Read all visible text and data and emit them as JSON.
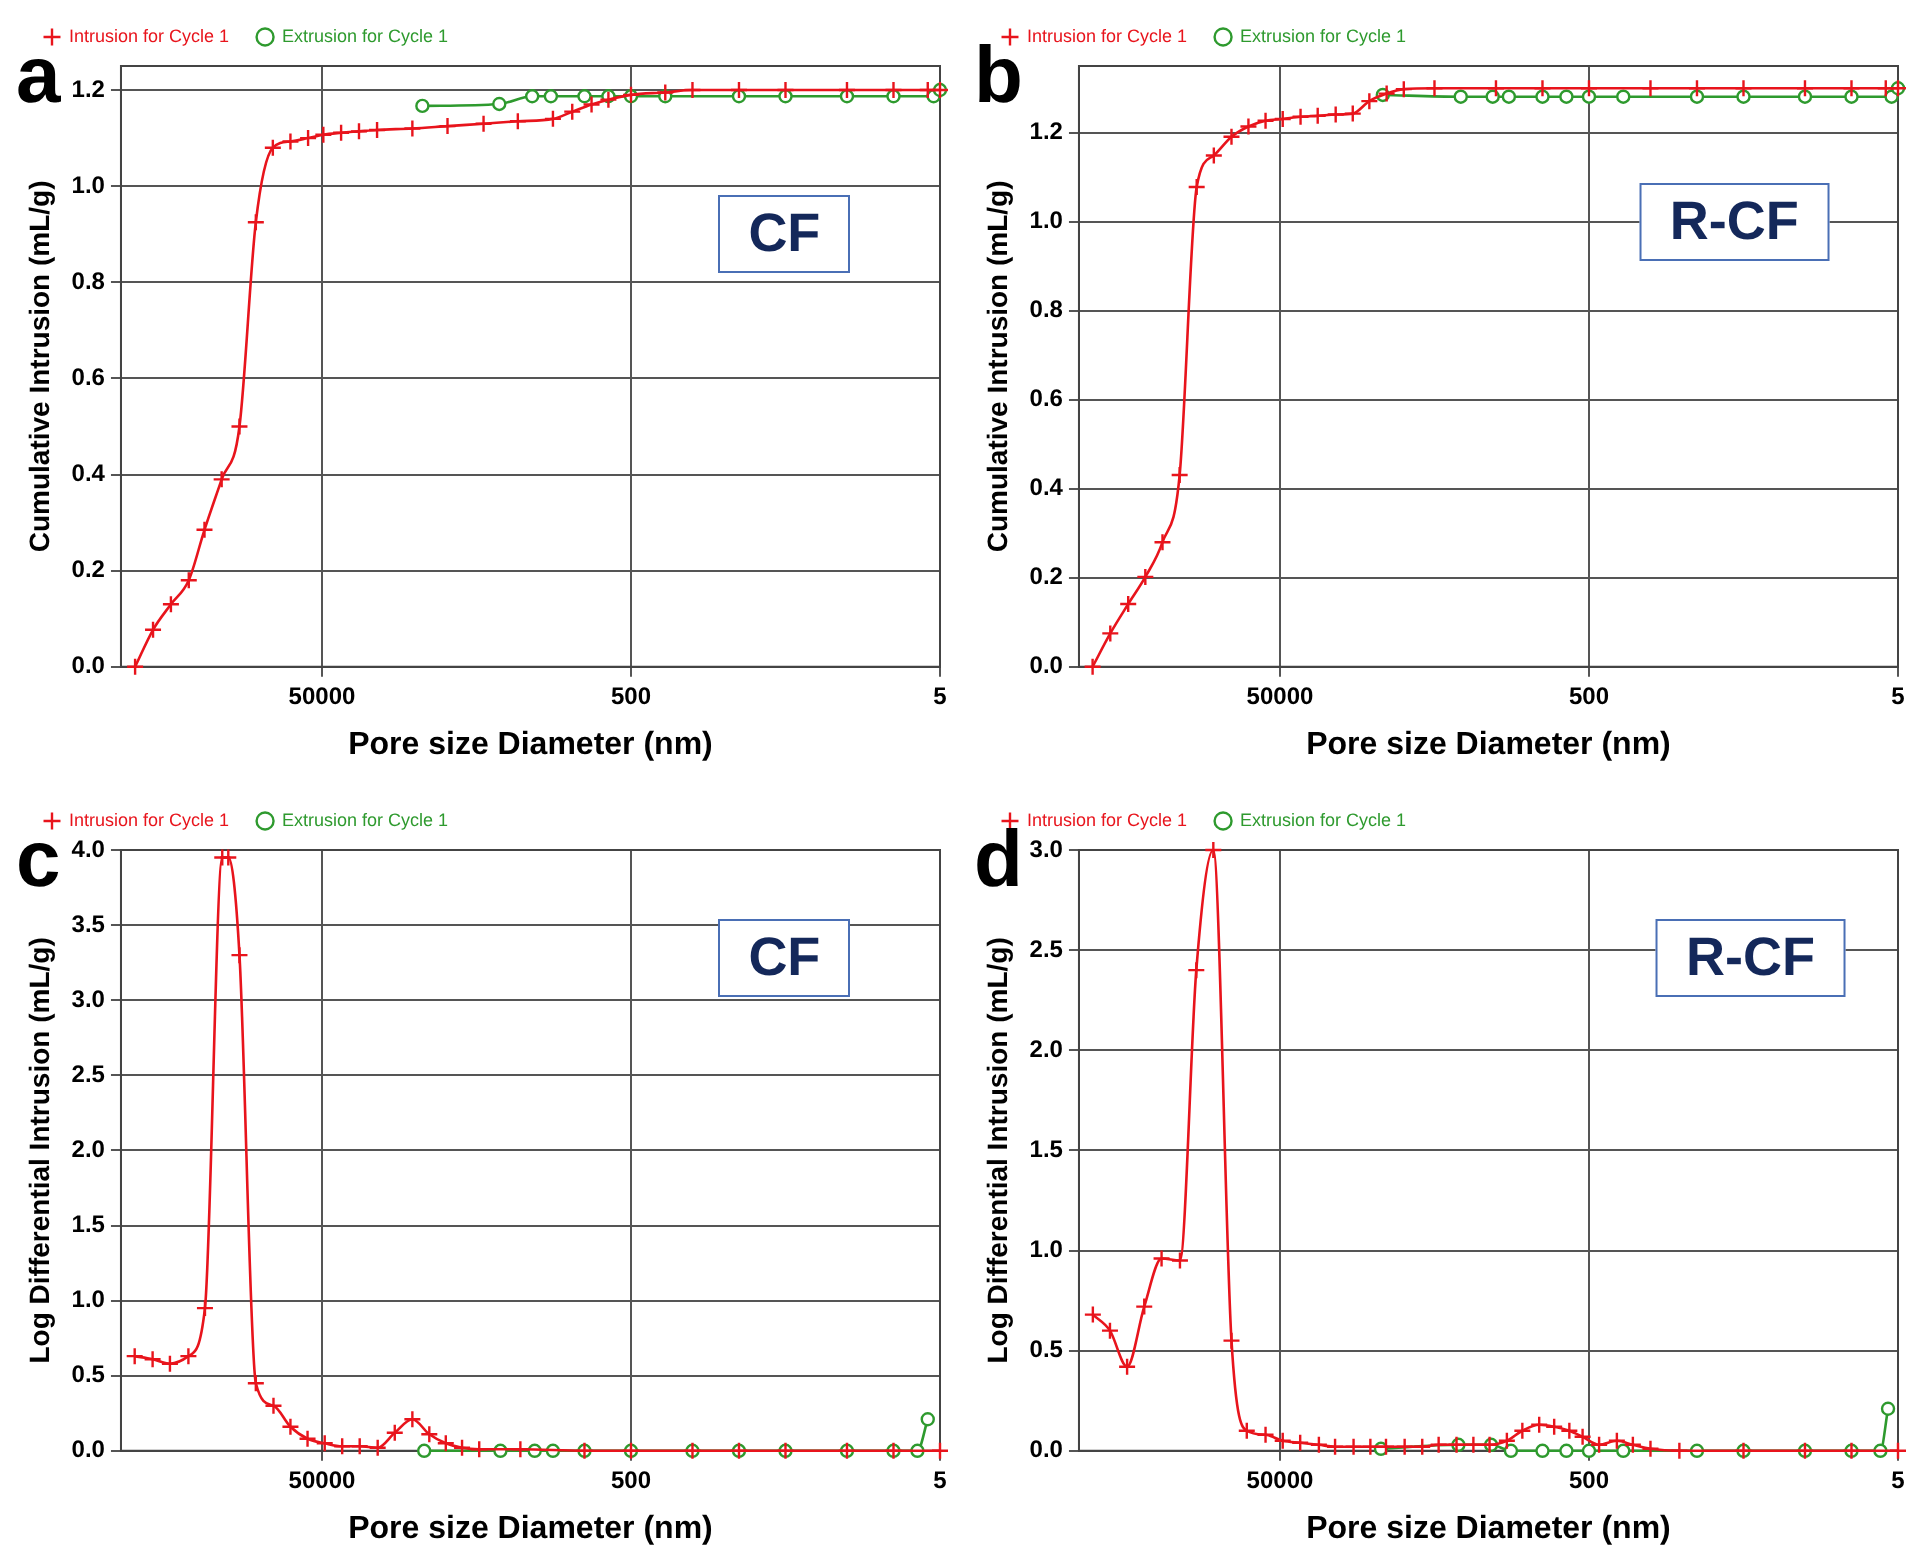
{
  "chart_data": [
    {
      "type": "line",
      "xlabel": "Pore size Diameter (nm)",
      "ylabel": "Cumulative Intrusion (mL/g)",
      "log": "x",
      "xlim": [
        1000000,
        5
      ],
      "xticks": [
        50000,
        500,
        5
      ],
      "ylim": [
        0,
        1.25
      ],
      "yticks": [
        {
          "value": 0,
          "label": "0.0"
        },
        {
          "value": 0.2,
          "label": "0.2"
        },
        {
          "value": 0.4,
          "label": "0.4"
        },
        {
          "value": 0.6,
          "label": "0.6"
        },
        {
          "value": 0.8,
          "label": "0.8"
        },
        {
          "value": 1,
          "label": "1.0"
        },
        {
          "value": 1.2,
          "label": "1.2"
        }
      ],
      "grid": true,
      "legend": "top left",
      "annotations": [
        "a",
        "CF"
      ],
      "series": [
        {
          "name": "Intrusion for Cycle 1",
          "color": "#e8141c",
          "marker": "cross",
          "x": [
            810000,
            620000,
            475000,
            364000,
            288000,
            223000,
            171000,
            134000,
            104000,
            80000,
            61500,
            49000,
            37600,
            28800,
            22000,
            13000,
            7700,
            4500,
            2700,
            1600,
            1200,
            900,
            700,
            500,
            300,
            200,
            100,
            50,
            20,
            10,
            6,
            5
          ],
          "values": [
            0,
            0.077,
            0.13,
            0.18,
            0.285,
            0.39,
            0.5,
            0.925,
            1.08,
            1.093,
            1.1,
            1.107,
            1.111,
            1.114,
            1.117,
            1.12,
            1.125,
            1.13,
            1.135,
            1.14,
            1.155,
            1.17,
            1.18,
            1.19,
            1.195,
            1.2,
            1.2,
            1.2,
            1.2,
            1.2,
            1.2,
            1.2
          ]
        },
        {
          "name": "Extrusion for Cycle 1",
          "color": "#2e9a2e",
          "marker": "circle",
          "x": [
            11200,
            3560,
            2180,
            1650,
            1000,
            700,
            500,
            300,
            100,
            50,
            20,
            10,
            5.5,
            5
          ],
          "values": [
            1.167,
            1.171,
            1.187,
            1.187,
            1.187,
            1.187,
            1.187,
            1.187,
            1.187,
            1.187,
            1.187,
            1.187,
            1.187,
            1.2
          ]
        }
      ]
    },
    {
      "type": "line",
      "xlabel": "Pore size Diameter (nm)",
      "ylabel": "Cumulative Intrusion (mL/g)",
      "log": "x",
      "xlim": [
        1000000,
        5
      ],
      "xticks": [
        50000,
        500,
        5
      ],
      "ylim": [
        0,
        1.35
      ],
      "yticks": [
        {
          "value": 0,
          "label": "0.0"
        },
        {
          "value": 0.2,
          "label": "0.2"
        },
        {
          "value": 0.4,
          "label": "0.4"
        },
        {
          "value": 0.6,
          "label": "0.6"
        },
        {
          "value": 0.8,
          "label": "0.8"
        },
        {
          "value": 1,
          "label": "1.0"
        },
        {
          "value": 1.2,
          "label": "1.2"
        }
      ],
      "grid": true,
      "legend": "top left",
      "annotations": [
        "b",
        "R-CF"
      ],
      "series": [
        {
          "name": "Intrusion for Cycle 1",
          "color": "#e8141c",
          "marker": "cross",
          "x": [
            816000,
            627000,
            480000,
            372000,
            288000,
            223000,
            173000,
            134000,
            103000,
            80000,
            62000,
            48000,
            36800,
            28500,
            21800,
            16900,
            13200,
            10200,
            7900,
            5000,
            2000,
            1000,
            500,
            200,
            100,
            50,
            20,
            10,
            6,
            5
          ],
          "values": [
            0,
            0.075,
            0.141,
            0.202,
            0.28,
            0.431,
            1.078,
            1.149,
            1.191,
            1.214,
            1.227,
            1.231,
            1.236,
            1.238,
            1.241,
            1.243,
            1.271,
            1.288,
            1.298,
            1.3,
            1.3,
            1.3,
            1.3,
            1.3,
            1.3,
            1.3,
            1.3,
            1.3,
            1.3,
            1.3
          ]
        },
        {
          "name": "Extrusion for Cycle 1",
          "color": "#2e9a2e",
          "marker": "circle",
          "x": [
            10800,
            3380,
            2100,
            1650,
            1000,
            700,
            500,
            300,
            100,
            50,
            20,
            10,
            5.5,
            5
          ],
          "values": [
            1.285,
            1.281,
            1.281,
            1.281,
            1.281,
            1.281,
            1.281,
            1.281,
            1.281,
            1.281,
            1.281,
            1.281,
            1.281,
            1.3
          ]
        }
      ]
    },
    {
      "type": "line",
      "xlabel": "Pore size Diameter (nm)",
      "ylabel": "Log Differential Intrusion (mL/g)",
      "log": "x",
      "xlim": [
        1000000,
        5
      ],
      "xticks": [
        50000,
        500,
        5
      ],
      "ylim": [
        0,
        4
      ],
      "yticks": [
        {
          "value": 0,
          "label": "0.0"
        },
        {
          "value": 0.5,
          "label": "0.5"
        },
        {
          "value": 1,
          "label": "1.0"
        },
        {
          "value": 1.5,
          "label": "1.5"
        },
        {
          "value": 2,
          "label": "2.0"
        },
        {
          "value": 2.5,
          "label": "2.5"
        },
        {
          "value": 3,
          "label": "3.0"
        },
        {
          "value": 3.5,
          "label": "3.5"
        },
        {
          "value": 4,
          "label": "4.0"
        }
      ],
      "grid": true,
      "legend": "top left",
      "annotations": [
        "c",
        "CF"
      ],
      "series": [
        {
          "name": "Intrusion for Cycle 1",
          "color": "#e8141c",
          "marker": "cross",
          "x": [
            815000,
            624000,
            482000,
            366000,
            286000,
            221000,
            202000,
            171000,
            134000,
            103000,
            80000,
            62000,
            48000,
            37000,
            28500,
            21800,
            16900,
            13000,
            10100,
            7900,
            6200,
            4800,
            2600,
            1000,
            500,
            200,
            100,
            50,
            20,
            10,
            5
          ],
          "values": [
            0.63,
            0.61,
            0.58,
            0.63,
            0.95,
            3.95,
            3.95,
            3.3,
            0.45,
            0.3,
            0.16,
            0.08,
            0.05,
            0.03,
            0.03,
            0.02,
            0.12,
            0.21,
            0.11,
            0.05,
            0.02,
            0.01,
            0.01,
            0,
            0,
            0,
            0,
            0,
            0,
            0,
            0
          ]
        },
        {
          "name": "Extrusion for Cycle 1",
          "color": "#2e9a2e",
          "marker": "circle",
          "x": [
            10900,
            3500,
            2100,
            1600,
            1000,
            500,
            200,
            100,
            50,
            20,
            10,
            7,
            6
          ],
          "values": [
            0,
            0,
            0,
            0,
            0,
            0,
            0,
            0,
            0,
            0,
            0,
            0,
            0.21
          ]
        }
      ]
    },
    {
      "type": "line",
      "xlabel": "Pore size Diameter (nm)",
      "ylabel": "Log Differential Intrusion (mL/g)",
      "log": "x",
      "xlim": [
        1000000,
        5
      ],
      "xticks": [
        50000,
        500,
        5
      ],
      "ylim": [
        0,
        3
      ],
      "yticks": [
        {
          "value": 0,
          "label": "0.0"
        },
        {
          "value": 0.5,
          "label": "0.5"
        },
        {
          "value": 1,
          "label": "1.0"
        },
        {
          "value": 1.5,
          "label": "1.5"
        },
        {
          "value": 2,
          "label": "2.0"
        },
        {
          "value": 2.5,
          "label": "2.5"
        },
        {
          "value": 3,
          "label": "3.0"
        }
      ],
      "grid": true,
      "legend": "top left",
      "annotations": [
        "d",
        "R-CF"
      ],
      "series": [
        {
          "name": "Intrusion for Cycle 1",
          "color": "#e8141c",
          "marker": "cross",
          "x": [
            813000,
            630000,
            488000,
            378000,
            292000,
            222000,
            174000,
            135000,
            103000,
            82000,
            62000,
            48000,
            37000,
            28000,
            22000,
            16700,
            13000,
            10300,
            7800,
            6000,
            4700,
            3600,
            2800,
            2200,
            1700,
            1350,
            1050,
            840,
            670,
            550,
            430,
            330,
            260,
            200,
            130,
            50,
            20,
            10,
            5
          ],
          "values": [
            0.68,
            0.6,
            0.42,
            0.72,
            0.96,
            0.95,
            2.4,
            3,
            0.55,
            0.1,
            0.08,
            0.05,
            0.04,
            0.03,
            0.02,
            0.02,
            0.02,
            0.02,
            0.02,
            0.02,
            0.03,
            0.03,
            0.03,
            0.03,
            0.05,
            0.1,
            0.13,
            0.12,
            0.1,
            0.07,
            0.03,
            0.05,
            0.03,
            0.01,
            0,
            0,
            0,
            0,
            0
          ]
        },
        {
          "name": "Extrusion for Cycle 1",
          "color": "#2e9a2e",
          "marker": "circle",
          "x": [
            11100,
            3500,
            2150,
            1600,
            1000,
            700,
            500,
            300,
            100,
            50,
            20,
            10,
            6.5,
            5.8
          ],
          "values": [
            0.01,
            0.03,
            0.03,
            0,
            0,
            0,
            0,
            0,
            0,
            0,
            0,
            0,
            0,
            0.21
          ]
        }
      ]
    }
  ]
}
